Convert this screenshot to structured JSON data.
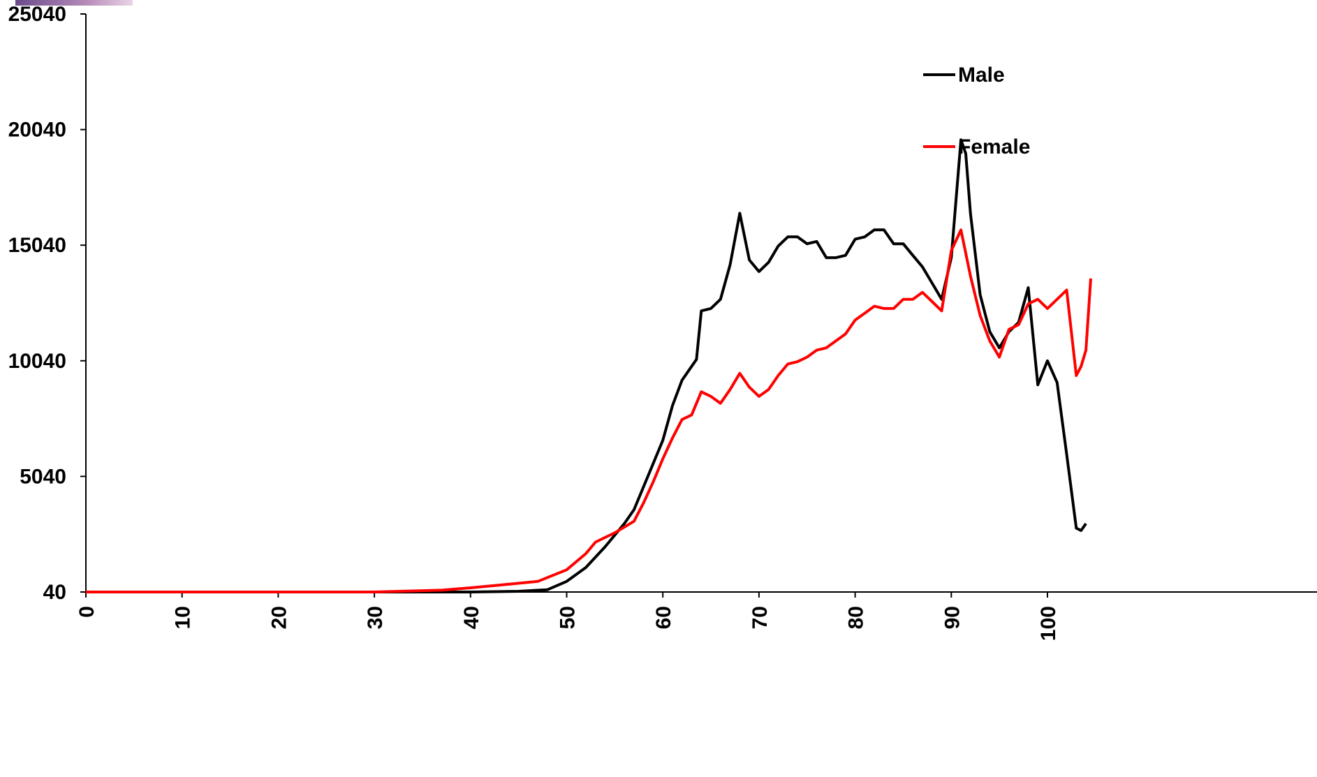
{
  "chart_data": {
    "type": "line",
    "title": "",
    "xlabel": "",
    "ylabel": "",
    "xlim": [
      0,
      104
    ],
    "ylim": [
      40,
      25040
    ],
    "y_ticks": [
      40,
      5040,
      10040,
      15040,
      20040,
      25040
    ],
    "x_ticks": [
      0,
      10,
      20,
      30,
      40,
      50,
      60,
      70,
      80,
      90,
      100
    ],
    "grid": false,
    "legend_position": "top-right",
    "series": [
      {
        "name": "Male",
        "color": "#000000",
        "points": [
          [
            0,
            40
          ],
          [
            40,
            40
          ],
          [
            45,
            70
          ],
          [
            48,
            140
          ],
          [
            50,
            500
          ],
          [
            52,
            1100
          ],
          [
            54,
            2000
          ],
          [
            56,
            3000
          ],
          [
            57,
            3600
          ],
          [
            58,
            4600
          ],
          [
            60,
            6600
          ],
          [
            61,
            8100
          ],
          [
            62,
            9200
          ],
          [
            63,
            9800
          ],
          [
            63.5,
            10100
          ],
          [
            64,
            12200
          ],
          [
            65,
            12300
          ],
          [
            66,
            12700
          ],
          [
            67,
            14200
          ],
          [
            68,
            16420
          ],
          [
            69,
            14400
          ],
          [
            70,
            13900
          ],
          [
            71,
            14300
          ],
          [
            72,
            15000
          ],
          [
            73,
            15400
          ],
          [
            74,
            15400
          ],
          [
            75,
            15100
          ],
          [
            76,
            15200
          ],
          [
            77,
            14500
          ],
          [
            78,
            14500
          ],
          [
            79,
            14600
          ],
          [
            80,
            15300
          ],
          [
            81,
            15400
          ],
          [
            82,
            15700
          ],
          [
            83,
            15700
          ],
          [
            84,
            15100
          ],
          [
            85,
            15100
          ],
          [
            86,
            14600
          ],
          [
            87,
            14100
          ],
          [
            88,
            13400
          ],
          [
            89,
            12700
          ],
          [
            90,
            14500
          ],
          [
            91,
            19600
          ],
          [
            91.5,
            19000
          ],
          [
            92,
            16400
          ],
          [
            93,
            12900
          ],
          [
            94,
            11300
          ],
          [
            95,
            10600
          ],
          [
            96,
            11300
          ],
          [
            97,
            11700
          ],
          [
            98,
            13200
          ],
          [
            99,
            9000
          ],
          [
            100,
            10040
          ],
          [
            101,
            9100
          ],
          [
            102,
            6000
          ],
          [
            102.5,
            4400
          ],
          [
            103,
            2800
          ],
          [
            103.5,
            2700
          ],
          [
            104,
            3000
          ]
        ]
      },
      {
        "name": "Female",
        "color": "#ff0000",
        "points": [
          [
            0,
            40
          ],
          [
            30,
            40
          ],
          [
            37,
            120
          ],
          [
            40,
            220
          ],
          [
            43,
            340
          ],
          [
            47,
            500
          ],
          [
            50,
            1000
          ],
          [
            52,
            1700
          ],
          [
            53,
            2200
          ],
          [
            55,
            2600
          ],
          [
            57,
            3100
          ],
          [
            58,
            3900
          ],
          [
            59,
            4800
          ],
          [
            60,
            5800
          ],
          [
            61,
            6700
          ],
          [
            62,
            7500
          ],
          [
            63,
            7700
          ],
          [
            64,
            8700
          ],
          [
            65,
            8500
          ],
          [
            66,
            8200
          ],
          [
            67,
            8800
          ],
          [
            68,
            9500
          ],
          [
            69,
            8900
          ],
          [
            70,
            8500
          ],
          [
            71,
            8800
          ],
          [
            72,
            9400
          ],
          [
            73,
            9900
          ],
          [
            74,
            10000
          ],
          [
            75,
            10200
          ],
          [
            76,
            10500
          ],
          [
            77,
            10600
          ],
          [
            78,
            10900
          ],
          [
            79,
            11200
          ],
          [
            80,
            11800
          ],
          [
            81,
            12100
          ],
          [
            82,
            12400
          ],
          [
            83,
            12300
          ],
          [
            84,
            12300
          ],
          [
            85,
            12700
          ],
          [
            86,
            12700
          ],
          [
            87,
            13000
          ],
          [
            88,
            12600
          ],
          [
            89,
            12200
          ],
          [
            90,
            14800
          ],
          [
            91,
            15700
          ],
          [
            92,
            13700
          ],
          [
            93,
            12000
          ],
          [
            94,
            10900
          ],
          [
            95,
            10200
          ],
          [
            96,
            11400
          ],
          [
            97,
            11600
          ],
          [
            98,
            12500
          ],
          [
            99,
            12700
          ],
          [
            100,
            12300
          ],
          [
            101,
            12700
          ],
          [
            102,
            13100
          ],
          [
            103,
            9400
          ],
          [
            103.5,
            9800
          ],
          [
            104,
            10500
          ],
          [
            104.5,
            13600
          ]
        ]
      }
    ]
  }
}
